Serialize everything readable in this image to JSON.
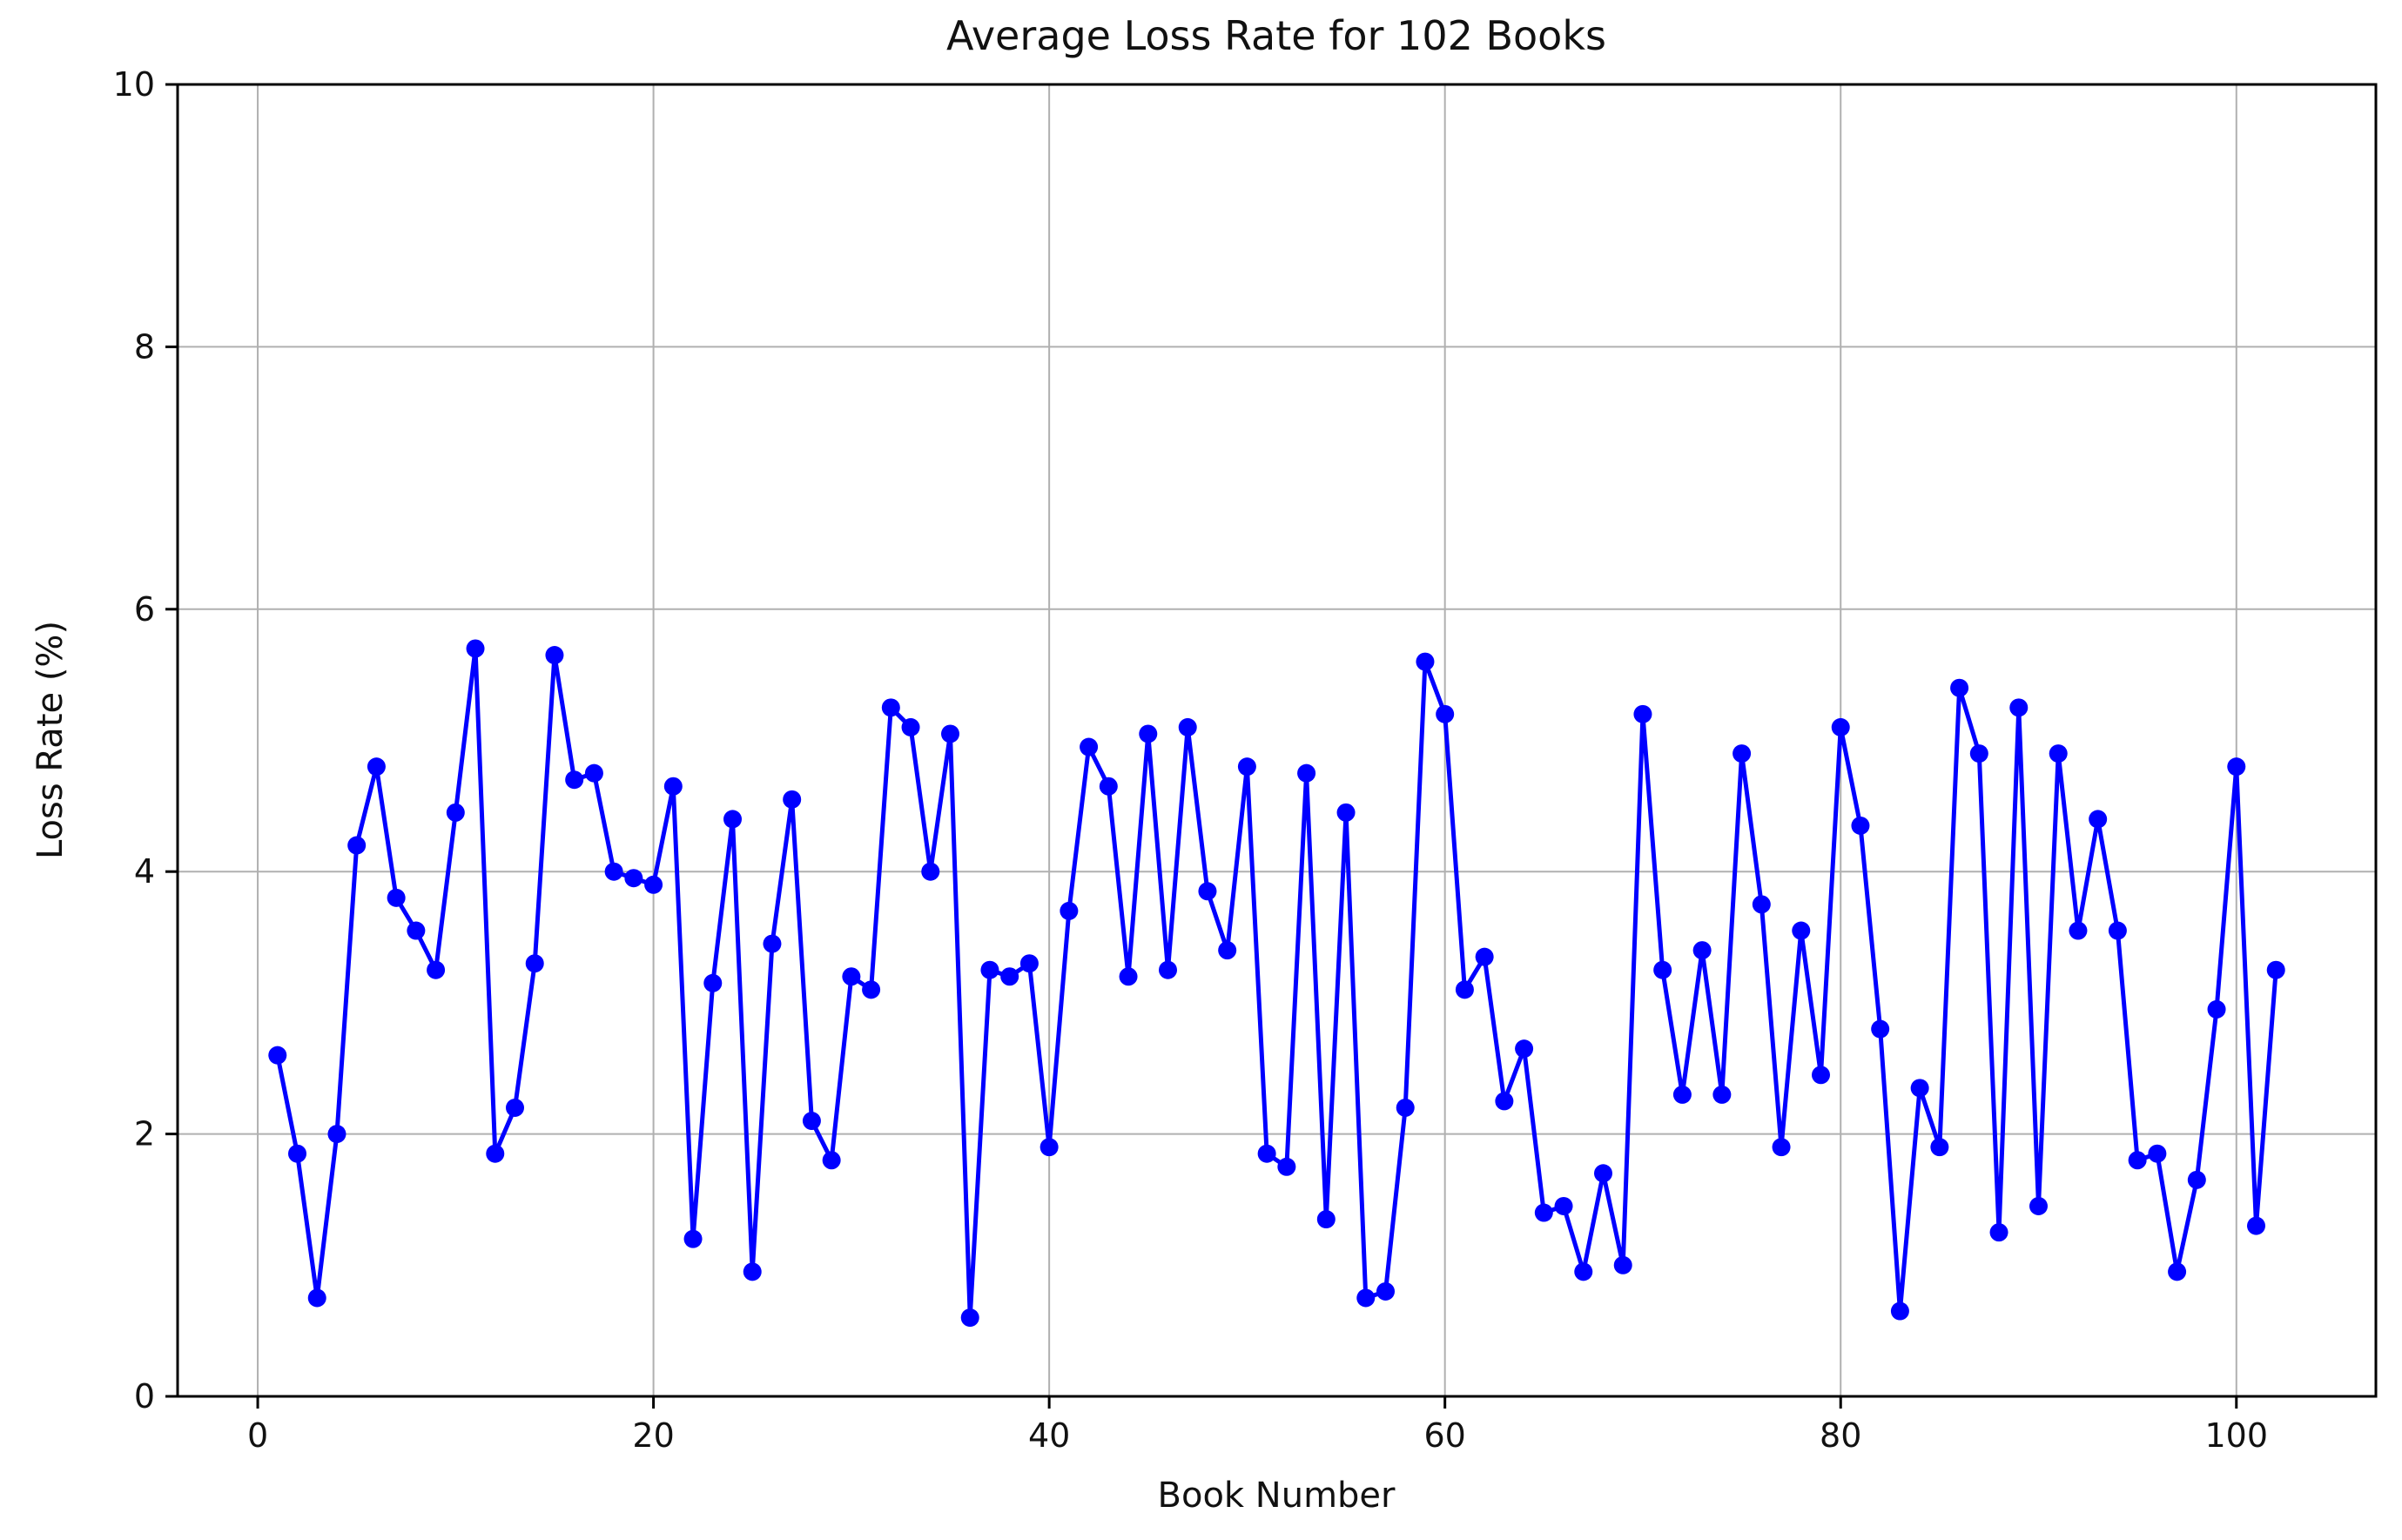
{
  "figure": {
    "title": "Average Loss Rate for 102 Books",
    "xlabel": "Book Number",
    "ylabel": "Loss Rate (%)"
  },
  "chart_data": {
    "type": "line",
    "title": "Average Loss Rate for 102 Books",
    "xlabel": "Book Number",
    "ylabel": "Loss Rate (%)",
    "legend": null,
    "grid": true,
    "grid_color": "#b0b0b0",
    "line_color": "#0000ff",
    "marker": "circle",
    "xlim": [
      -4.05,
      107.05
    ],
    "ylim": [
      0,
      10
    ],
    "x_ticks": [
      0,
      20,
      40,
      60,
      80,
      100
    ],
    "y_ticks": [
      0,
      2,
      4,
      6,
      8,
      10
    ],
    "x_start": 1,
    "num_points": 102,
    "series": [
      {
        "name": "Loss Rate (%)",
        "values": [
          2.6,
          1.85,
          0.75,
          2.0,
          4.2,
          4.8,
          3.8,
          3.55,
          3.25,
          4.45,
          5.7,
          1.85,
          2.2,
          3.3,
          5.65,
          4.7,
          4.75,
          4.0,
          3.95,
          3.9,
          4.65,
          1.2,
          3.15,
          4.4,
          0.95,
          3.45,
          4.55,
          2.1,
          1.8,
          3.2,
          3.1,
          5.25,
          5.1,
          4.0,
          5.05,
          0.6,
          3.25,
          3.2,
          3.3,
          1.9,
          3.7,
          4.95,
          4.65,
          3.2,
          5.05,
          3.25,
          5.1,
          3.85,
          3.4,
          4.8,
          1.85,
          1.75,
          4.75,
          1.35,
          4.45,
          0.75,
          0.8,
          2.2,
          5.6,
          5.2,
          3.1,
          3.35,
          2.25,
          2.65,
          1.4,
          1.45,
          0.95,
          1.7,
          1.0,
          5.2,
          3.25,
          2.3,
          3.4,
          2.3,
          4.9,
          3.75,
          1.9,
          3.55,
          2.45,
          5.1,
          4.35,
          2.8,
          0.65,
          2.35,
          1.9,
          5.4,
          4.9,
          1.25,
          5.25,
          1.45,
          4.9,
          3.55,
          4.4,
          3.55,
          1.8,
          1.85,
          0.95,
          1.65,
          2.95,
          4.8,
          1.3,
          3.25
        ]
      }
    ]
  }
}
